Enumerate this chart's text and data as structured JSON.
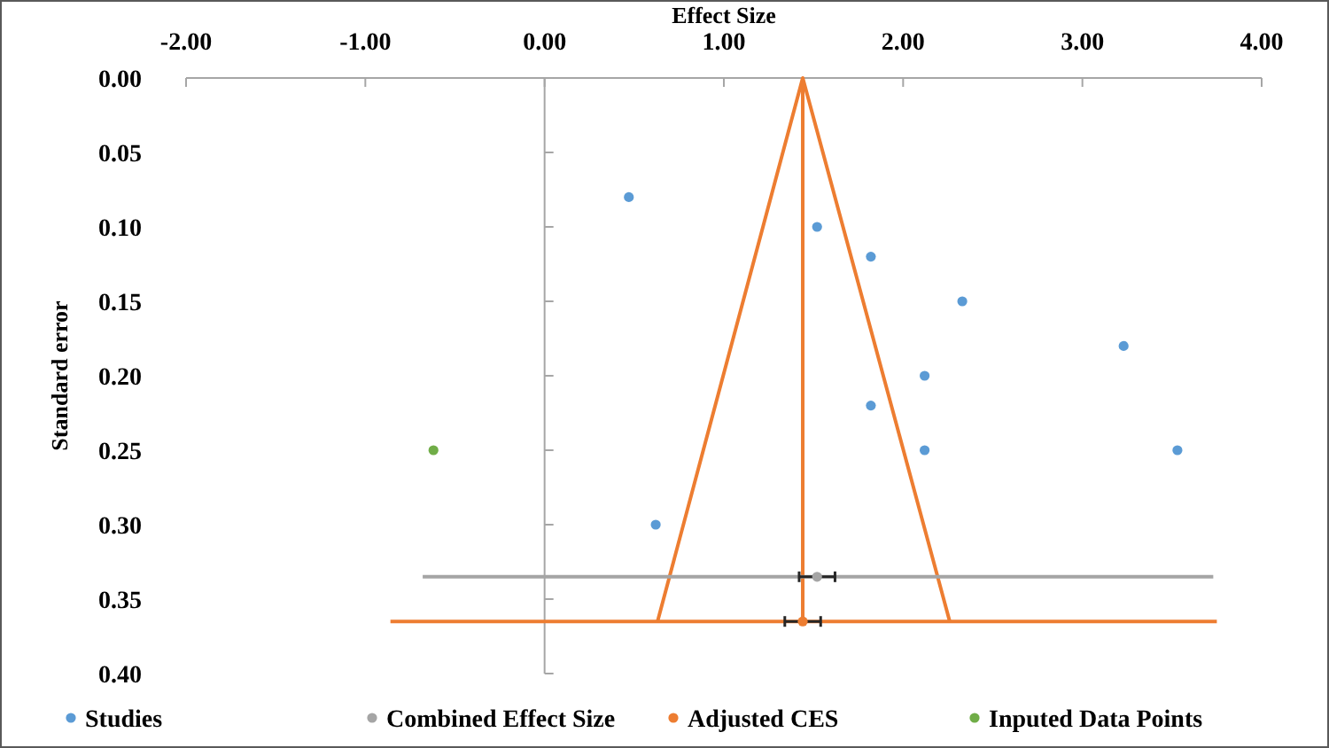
{
  "chart_data": {
    "type": "scatter",
    "xlabel": "Effect Size",
    "ylabel": "Standard error",
    "xlim": [
      -2,
      4
    ],
    "xticks": [
      {
        "value": -2,
        "label": "-2.00"
      },
      {
        "value": -1,
        "label": "-1.00"
      },
      {
        "value": 0,
        "label": "0.00"
      },
      {
        "value": 1,
        "label": "1.00"
      },
      {
        "value": 2,
        "label": "2.00"
      },
      {
        "value": 3,
        "label": "3.00"
      },
      {
        "value": 4,
        "label": "4.00"
      }
    ],
    "ylim": [
      0.4,
      0
    ],
    "yticks": [
      {
        "value": 0,
        "label": "0.00"
      },
      {
        "value": 0.05,
        "label": "0.05"
      },
      {
        "value": 0.1,
        "label": "0.10"
      },
      {
        "value": 0.15,
        "label": "0.15"
      },
      {
        "value": 0.2,
        "label": "0.20"
      },
      {
        "value": 0.25,
        "label": "0.25"
      },
      {
        "value": 0.3,
        "label": "0.30"
      },
      {
        "value": 0.35,
        "label": "0.35"
      },
      {
        "value": 0.4,
        "label": "0.40"
      }
    ],
    "grid": false,
    "legend": "bottom",
    "marker": "circle",
    "series": [
      {
        "type": "line",
        "color": "#ed7d31",
        "x": [
          0.63,
          1.44,
          2.26
        ],
        "values": [
          0.365,
          0,
          0.365
        ],
        "marker": "none"
      },
      {
        "type": "line",
        "color": "#ed7d31",
        "x": [
          1.44,
          1.44
        ],
        "values": [
          0,
          0.365
        ],
        "marker": "none"
      },
      {
        "name": "Studies",
        "color": "#5b9bd5",
        "x": [
          0.47,
          1.52,
          1.82,
          2.33,
          3.23,
          2.12,
          1.82,
          2.12,
          3.53,
          0.62
        ],
        "values": [
          0.08,
          0.1,
          0.12,
          0.15,
          0.18,
          0.2,
          0.22,
          0.25,
          0.25,
          0.3
        ]
      },
      {
        "type": "line",
        "color": "#a5a5a5",
        "x": [
          -0.68,
          3.73
        ],
        "values": [
          0.335,
          0.335
        ],
        "marker": "none"
      },
      {
        "type": "line",
        "color": "#ed7d31",
        "x": [
          -0.86,
          3.75
        ],
        "values": [
          0.365,
          0.365
        ],
        "marker": "none"
      },
      {
        "name": "Combined Effect Size",
        "color": "#a5a5a5",
        "x": [
          1.52
        ],
        "values": [
          0.335
        ],
        "xerrors": [
          [
            1.42,
            1.62
          ]
        ]
      },
      {
        "name": "Adjusted CES",
        "color": "#ed7d31",
        "x": [
          1.44
        ],
        "values": [
          0.365
        ],
        "xerrors": [
          [
            1.34,
            1.54
          ]
        ]
      },
      {
        "name": "Inputed Data Points",
        "color": "#70ad47",
        "x": [
          -0.62
        ],
        "values": [
          0.25
        ]
      }
    ]
  }
}
